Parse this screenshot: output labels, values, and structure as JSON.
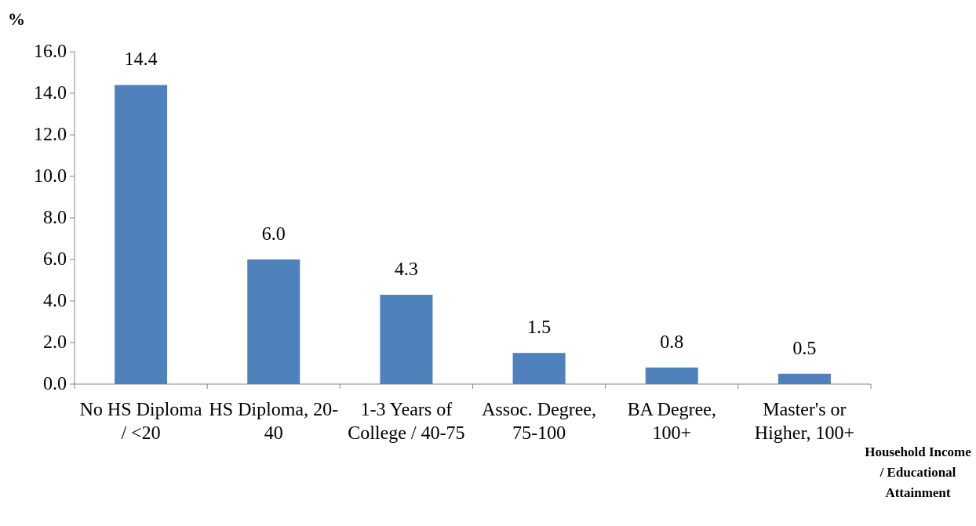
{
  "chart_data": {
    "type": "bar",
    "y_axis_label": "%",
    "x_axis_label": "Household Income / Educational Attainment",
    "categories": [
      "No HS Diploma / <20",
      "HS Diploma, 20-40",
      "1-3 Years of College / 40-75",
      "Assoc. Degree, 75-100",
      "BA Degree, 100+",
      "Master's or Higher, 100+"
    ],
    "values": [
      14.4,
      6.0,
      4.3,
      1.5,
      0.8,
      0.5
    ],
    "value_labels": [
      "14.4",
      "6.0",
      "4.3",
      "1.5",
      "0.8",
      "0.5"
    ],
    "color": "#4f81bd",
    "ylim": [
      0,
      16
    ],
    "yticks": [
      {
        "value": 0,
        "label": "0.0"
      },
      {
        "value": 2,
        "label": "2.0"
      },
      {
        "value": 4,
        "label": "4.0"
      },
      {
        "value": 6,
        "label": "6.0"
      },
      {
        "value": 8,
        "label": "8.0"
      },
      {
        "value": 10,
        "label": "10.0"
      },
      {
        "value": 12,
        "label": "12.0"
      },
      {
        "value": 14,
        "label": "14.0"
      },
      {
        "value": 16,
        "label": "16.0"
      }
    ],
    "grid": false
  }
}
